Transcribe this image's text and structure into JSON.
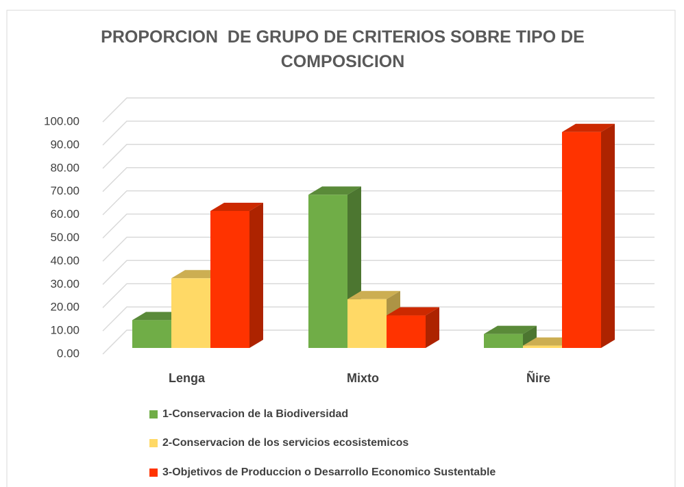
{
  "chart_data": {
    "type": "bar3d",
    "title": "PROPORCION  DE GRUPO DE CRITERIOS SOBRE TIPO DE COMPOSICION",
    "categories": [
      "Lenga",
      "Mixto",
      "Ñire"
    ],
    "series": [
      {
        "name": "1-Conservacion de la Biodiversidad",
        "color": "#70ad47",
        "values": [
          12,
          66,
          6
        ]
      },
      {
        "name": "2-Conservacion de los servicios ecosistemicos",
        "color": "#ffd966",
        "values": [
          30,
          21,
          1
        ]
      },
      {
        "name": "3-Objetivos de Produccion o Desarrollo Economico Sustentable",
        "color": "#ff3300",
        "values": [
          59,
          14,
          93
        ]
      }
    ],
    "ylim": [
      0,
      100
    ],
    "yticks": [
      {
        "value": 0,
        "label": "0.00"
      },
      {
        "value": 10,
        "label": "10.00"
      },
      {
        "value": 20,
        "label": "20.00"
      },
      {
        "value": 30,
        "label": "30.00"
      },
      {
        "value": 40,
        "label": "40.00"
      },
      {
        "value": 50,
        "label": "50.00"
      },
      {
        "value": 60,
        "label": "60.00"
      },
      {
        "value": 70,
        "label": "70.00"
      },
      {
        "value": 80,
        "label": "80.00"
      },
      {
        "value": 90,
        "label": "90.00"
      },
      {
        "value": 100,
        "label": "100.00"
      }
    ],
    "grid": true,
    "legend": "bottom"
  }
}
